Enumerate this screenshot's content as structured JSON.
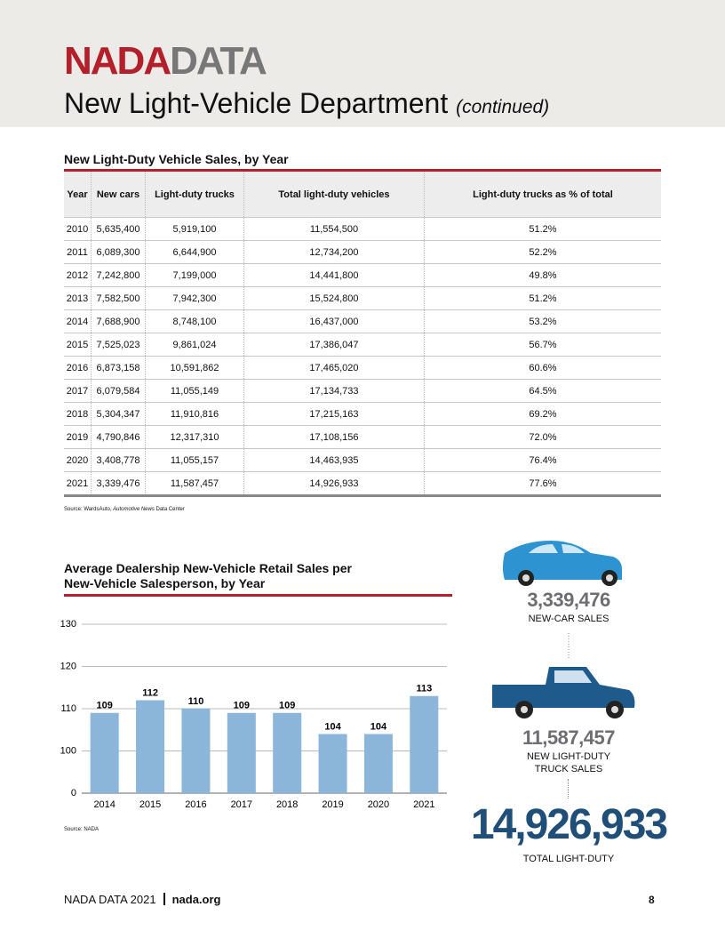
{
  "header": {
    "brand_red": "NADA",
    "brand_gray": "DATA",
    "title": "New Light-Vehicle Department",
    "title_note": "(continued)"
  },
  "table": {
    "title": "New Light-Duty Vehicle Sales, by Year",
    "columns": [
      "Year",
      "New cars",
      "Light-duty trucks",
      "Total light-duty vehicles",
      "Light-duty trucks as % of total"
    ],
    "rows": [
      [
        "2010",
        "5,635,400",
        "5,919,100",
        "11,554,500",
        "51.2%"
      ],
      [
        "2011",
        "6,089,300",
        "6,644,900",
        "12,734,200",
        "52.2%"
      ],
      [
        "2012",
        "7,242,800",
        "7,199,000",
        "14,441,800",
        "49.8%"
      ],
      [
        "2013",
        "7,582,500",
        "7,942,300",
        "15,524,800",
        "51.2%"
      ],
      [
        "2014",
        "7,688,900",
        "8,748,100",
        "16,437,000",
        "53.2%"
      ],
      [
        "2015",
        "7,525,023",
        "9,861,024",
        "17,386,047",
        "56.7%"
      ],
      [
        "2016",
        "6,873,158",
        "10,591,862",
        "17,465,020",
        "60.6%"
      ],
      [
        "2017",
        "6,079,584",
        "11,055,149",
        "17,134,733",
        "64.5%"
      ],
      [
        "2018",
        "5,304,347",
        "11,910,816",
        "17,215,163",
        "69.2%"
      ],
      [
        "2019",
        "4,790,846",
        "12,317,310",
        "17,108,156",
        "72.0%"
      ],
      [
        "2020",
        "3,408,778",
        "11,055,157",
        "14,463,935",
        "76.4%"
      ],
      [
        "2021",
        "3,339,476",
        "11,587,457",
        "14,926,933",
        "77.6%"
      ]
    ],
    "source": [
      "Source: WardsAuto, ",
      "Automotive News",
      " Data Center"
    ]
  },
  "chart_data": {
    "type": "bar",
    "title": "Average Dealership New-Vehicle Retail Sales per New-Vehicle Salesperson, by Year",
    "categories": [
      "2014",
      "2015",
      "2016",
      "2017",
      "2018",
      "2019",
      "2020",
      "2021"
    ],
    "values": [
      109,
      112,
      110,
      109,
      109,
      104,
      104,
      113
    ],
    "color": "#8bb5d9",
    "ylim": [
      0,
      130
    ],
    "yticks": [
      0,
      100,
      110,
      120,
      130
    ],
    "grid": true,
    "source": "Source: NADA"
  },
  "infographic": {
    "car_value": "3,339,476",
    "car_label": "NEW-CAR SALES",
    "truck_value": "11,587,457",
    "truck_label": "NEW LIGHT-DUTY TRUCK SALES",
    "total_value": "14,926,933",
    "total_label": "TOTAL LIGHT-DUTY"
  },
  "footer": {
    "left": "NADA DATA 2021",
    "link": "nada.org",
    "page": "8"
  }
}
